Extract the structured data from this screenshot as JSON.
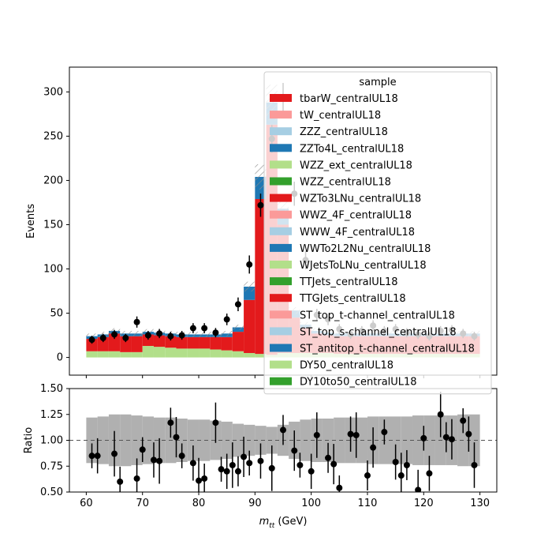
{
  "chart_data": [
    {
      "type": "bar",
      "subtype": "stacked-histogram-with-data-points",
      "panel": "main",
      "ylabel": "Events",
      "xlim": [
        57,
        133
      ],
      "ylim": [
        -20,
        328
      ],
      "yticks": [
        0,
        50,
        100,
        150,
        200,
        250,
        300
      ],
      "grid": false,
      "legend": {
        "title": "sample",
        "placement": "top-right",
        "entries": [
          {
            "name": "tbarW_centralUL18",
            "color": "#e31a1c"
          },
          {
            "name": "tW_centralUL18",
            "color": "#fb9a99"
          },
          {
            "name": "ZZZ_centralUL18",
            "color": "#a6cee3"
          },
          {
            "name": "ZZTo4L_centralUL18",
            "color": "#1f78b4"
          },
          {
            "name": "WZZ_ext_centralUL18",
            "color": "#b2df8a"
          },
          {
            "name": "WZZ_centralUL18",
            "color": "#33a02c"
          },
          {
            "name": "WZTo3LNu_centralUL18",
            "color": "#e31a1c"
          },
          {
            "name": "WWZ_4F_centralUL18",
            "color": "#fb9a99"
          },
          {
            "name": "WWW_4F_centralUL18",
            "color": "#a6cee3"
          },
          {
            "name": "WWTo2L2Nu_centralUL18",
            "color": "#1f78b4"
          },
          {
            "name": "WJetsToLNu_centralUL18",
            "color": "#b2df8a"
          },
          {
            "name": "TTJets_centralUL18",
            "color": "#33a02c"
          },
          {
            "name": "TTGJets_centralUL18",
            "color": "#e31a1c"
          },
          {
            "name": "ST_top_t-channel_centralUL18",
            "color": "#fb9a99"
          },
          {
            "name": "ST_top_s-channel_centralUL18",
            "color": "#a6cee3"
          },
          {
            "name": "ST_antitop_t-channel_centralUL18",
            "color": "#1f78b4"
          },
          {
            "name": "DY50_centralUL18",
            "color": "#b2df8a"
          },
          {
            "name": "DY10to50_centralUL18",
            "color": "#33a02c"
          }
        ]
      },
      "bin_edges": [
        60,
        62,
        64,
        66,
        68,
        70,
        72,
        74,
        76,
        78,
        80,
        82,
        84,
        86,
        88,
        90,
        92,
        94,
        96,
        98,
        100,
        102,
        104,
        106,
        108,
        110,
        112,
        114,
        116,
        118,
        120,
        122,
        124,
        126,
        128,
        130
      ],
      "stack": {
        "light_green": [
          7,
          7,
          7,
          6,
          6,
          13,
          12,
          11,
          10,
          10,
          10,
          9,
          8,
          7,
          5,
          4,
          3,
          5,
          5,
          5,
          5,
          5,
          4,
          4,
          4,
          4,
          4,
          4,
          4,
          4,
          4,
          4,
          4,
          4,
          4
        ],
        "red": [
          14,
          16,
          20,
          18,
          18,
          13,
          13,
          13,
          13,
          13,
          13,
          14,
          15,
          22,
          60,
          175,
          260,
          145,
          40,
          28,
          22,
          20,
          20,
          20,
          20,
          20,
          20,
          20,
          20,
          20,
          20,
          20,
          20,
          20,
          20
        ],
        "blue": [
          3,
          3,
          3,
          3,
          3,
          3,
          3,
          3,
          3,
          3,
          3,
          3,
          4,
          5,
          15,
          25,
          25,
          18,
          8,
          4,
          3,
          3,
          3,
          3,
          3,
          3,
          3,
          3,
          3,
          3,
          3,
          3,
          3,
          3,
          3
        ],
        "total": [
          24,
          26,
          30,
          27,
          27,
          29,
          28,
          27,
          26,
          26,
          26,
          26,
          27,
          34,
          80,
          204,
          288,
          168,
          53,
          37,
          30,
          28,
          27,
          27,
          27,
          27,
          27,
          27,
          27,
          27,
          27,
          27,
          27,
          27,
          27
        ]
      },
      "data_points": {
        "x": [
          61,
          63,
          65,
          67,
          69,
          71,
          73,
          75,
          77,
          79,
          81,
          83,
          85,
          87,
          89,
          91,
          93,
          95,
          97,
          99,
          101,
          103,
          105,
          107,
          109,
          111,
          113,
          115,
          117,
          119,
          121,
          123,
          125,
          127,
          129
        ],
        "y": [
          20,
          22,
          26,
          22,
          40,
          25,
          27,
          24,
          25,
          33,
          33,
          28,
          43,
          60,
          105,
          172,
          247,
          293,
          185,
          110,
          48,
          43,
          32,
          26,
          30,
          36,
          30,
          32,
          28,
          26,
          24,
          30,
          31,
          27,
          24
        ]
      },
      "hidden_points_note": ""
    },
    {
      "type": "scatter",
      "panel": "ratio",
      "xlabel": "m_tt (GeV)",
      "xlabel_main": "m",
      "xlabel_sub": "tt",
      "xlabel_unit": "(GeV)",
      "ylabel": "Ratio",
      "xlim": [
        57,
        133
      ],
      "ylim": [
        0.5,
        1.5
      ],
      "xticks": [
        60,
        70,
        80,
        90,
        100,
        110,
        120,
        130
      ],
      "yticks": [
        "0.50",
        "0.75",
        "1.00",
        "1.25",
        "1.50"
      ],
      "reference_line": 1.0,
      "band": {
        "lo": [
          0.78,
          0.77,
          0.75,
          0.75,
          0.76,
          0.77,
          0.78,
          0.78,
          0.79,
          0.8,
          0.8,
          0.81,
          0.82,
          0.84,
          0.85,
          0.86,
          0.87,
          0.85,
          0.82,
          0.8,
          0.79,
          0.79,
          0.78,
          0.78,
          0.78,
          0.77,
          0.77,
          0.77,
          0.77,
          0.76,
          0.76,
          0.76,
          0.76,
          0.75,
          0.75
        ],
        "hi": [
          1.22,
          1.23,
          1.25,
          1.25,
          1.24,
          1.23,
          1.22,
          1.22,
          1.21,
          1.2,
          1.2,
          1.19,
          1.18,
          1.16,
          1.15,
          1.14,
          1.13,
          1.15,
          1.18,
          1.2,
          1.21,
          1.21,
          1.22,
          1.22,
          1.22,
          1.23,
          1.23,
          1.23,
          1.23,
          1.24,
          1.24,
          1.24,
          1.24,
          1.25,
          1.25
        ]
      },
      "points": {
        "x": [
          61,
          62,
          65,
          66,
          69,
          70,
          72,
          73,
          75,
          76,
          77,
          79,
          80,
          81,
          83,
          84,
          85,
          86,
          87,
          88,
          89,
          91,
          93,
          95,
          97,
          98,
          100,
          101,
          103,
          104,
          105,
          107,
          108,
          110,
          111,
          113,
          115,
          116,
          117,
          119,
          120,
          121,
          123,
          124,
          125,
          127,
          128,
          129
        ],
        "y": [
          0.85,
          0.85,
          0.87,
          0.6,
          0.63,
          0.91,
          0.81,
          0.8,
          1.17,
          1.03,
          0.85,
          0.78,
          0.61,
          0.63,
          1.17,
          0.72,
          0.7,
          0.76,
          0.7,
          0.84,
          0.78,
          0.8,
          0.73,
          1.1,
          0.9,
          0.76,
          0.7,
          1.05,
          0.83,
          0.77,
          0.54,
          1.06,
          1.05,
          0.66,
          0.93,
          1.08,
          0.79,
          0.66,
          0.76,
          0.52,
          1.02,
          0.68,
          1.25,
          1.03,
          1.01,
          1.19,
          1.06,
          0.76
        ]
      }
    }
  ]
}
